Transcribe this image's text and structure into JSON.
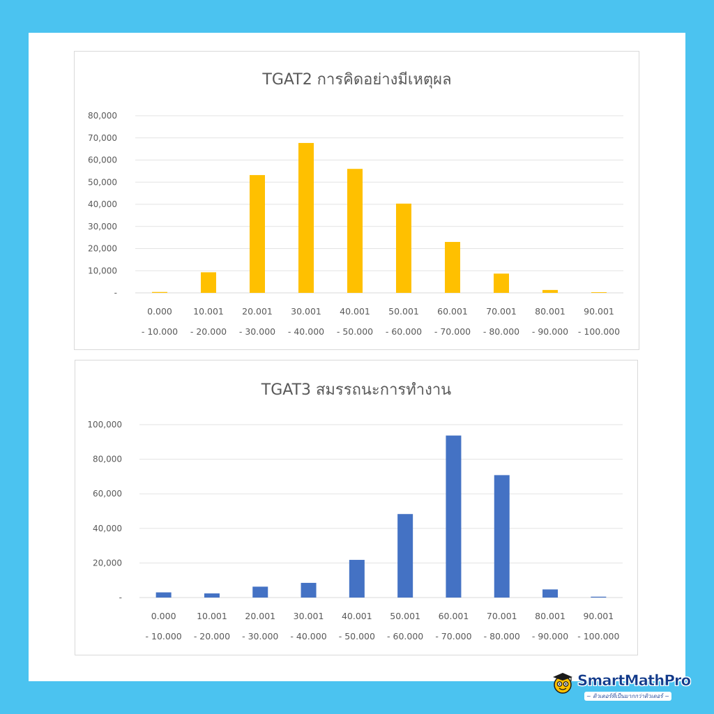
{
  "chart_data": [
    {
      "type": "bar",
      "title": "TGAT2 การคิดอย่างมีเหตุผล",
      "color": "#ffc000",
      "categories": [
        [
          "0.000",
          "- 10.000"
        ],
        [
          "10.001",
          "- 20.000"
        ],
        [
          "20.001",
          "- 30.000"
        ],
        [
          "30.001",
          "- 40.000"
        ],
        [
          "40.001",
          "- 50.000"
        ],
        [
          "50.001",
          "- 60.000"
        ],
        [
          "60.001",
          "- 70.000"
        ],
        [
          "70.001",
          "- 80.000"
        ],
        [
          "80.001",
          "- 90.000"
        ],
        [
          "90.001",
          "- 100.000"
        ]
      ],
      "values": [
        400,
        9300,
        53200,
        67700,
        56000,
        40300,
        23000,
        8700,
        1300,
        300
      ],
      "ylim": [
        0,
        80000
      ],
      "yticks": [
        "-",
        "10,000",
        "20,000",
        "30,000",
        "40,000",
        "50,000",
        "60,000",
        "70,000",
        "80,000"
      ],
      "grid": true,
      "legend": "none"
    },
    {
      "type": "bar",
      "title": "TGAT3 สมรรถนะการทำงาน",
      "color": "#4472c4",
      "categories": [
        [
          "0.000",
          "- 10.000"
        ],
        [
          "10.001",
          "- 20.000"
        ],
        [
          "20.001",
          "- 30.000"
        ],
        [
          "30.001",
          "- 40.000"
        ],
        [
          "40.001",
          "- 50.000"
        ],
        [
          "50.001",
          "- 60.000"
        ],
        [
          "60.001",
          "- 70.000"
        ],
        [
          "70.001",
          "- 80.000"
        ],
        [
          "80.001",
          "- 90.000"
        ],
        [
          "90.001",
          "- 100.000"
        ]
      ],
      "values": [
        3000,
        2400,
        6300,
        8500,
        21800,
        48300,
        93700,
        70800,
        4700,
        500
      ],
      "ylim": [
        0,
        100000
      ],
      "yticks": [
        "-",
        "20,000",
        "40,000",
        "60,000",
        "80,000",
        "100,000"
      ],
      "grid": true,
      "legend": "none"
    }
  ],
  "logo": {
    "brand_left": "Smart",
    "brand_mid": "Math",
    "brand_right": "Pro",
    "tagline": "~ ติวเตอร์ที่เป็นมากกว่าติวเตอร์ ~",
    "icon": "student-face-icon"
  }
}
